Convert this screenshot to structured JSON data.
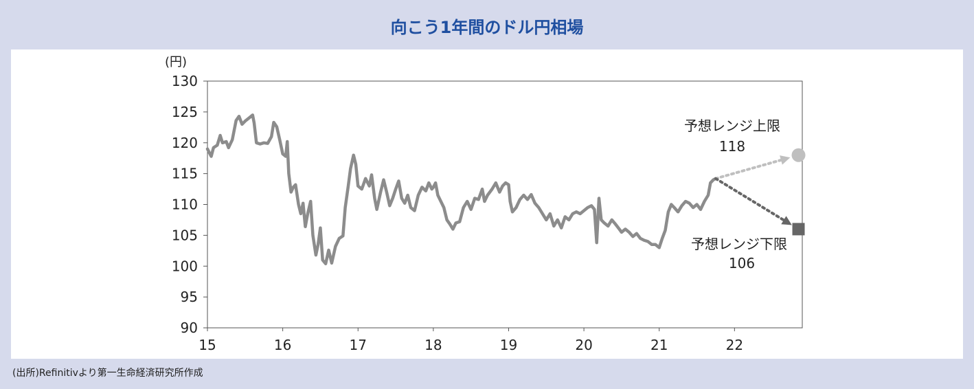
{
  "page": {
    "title": "向こう1年間のドル円相場",
    "source": "(出所)Refinitivより第一生命経済研究所作成"
  },
  "colors": {
    "background": "#d6daec",
    "title": "#1f4fa0",
    "line": "#8c8c8c",
    "upper": "#bfbfbf",
    "lower": "#666666"
  },
  "chart_data": {
    "type": "line",
    "y_unit_label": "(円)",
    "ylim": [
      90,
      130
    ],
    "y_ticks": [
      130,
      125,
      120,
      115,
      110,
      105,
      100,
      95,
      90
    ],
    "xlim": [
      15,
      22.9
    ],
    "x_ticks": [
      "15",
      "16",
      "17",
      "18",
      "19",
      "20",
      "21",
      "22"
    ],
    "grid": false,
    "series": [
      {
        "values": [
          [
            15.0,
            119.0
          ],
          [
            15.05,
            117.8
          ],
          [
            15.08,
            119.2
          ],
          [
            15.13,
            119.6
          ],
          [
            15.17,
            121.2
          ],
          [
            15.2,
            120.0
          ],
          [
            15.25,
            120.2
          ],
          [
            15.28,
            119.2
          ],
          [
            15.33,
            120.5
          ],
          [
            15.38,
            123.6
          ],
          [
            15.42,
            124.3
          ],
          [
            15.46,
            123.0
          ],
          [
            15.5,
            123.5
          ],
          [
            15.55,
            124.0
          ],
          [
            15.6,
            124.5
          ],
          [
            15.62,
            123.2
          ],
          [
            15.65,
            120.0
          ],
          [
            15.7,
            119.8
          ],
          [
            15.75,
            120.0
          ],
          [
            15.8,
            119.9
          ],
          [
            15.85,
            121.0
          ],
          [
            15.88,
            123.3
          ],
          [
            15.92,
            122.6
          ],
          [
            15.96,
            120.5
          ],
          [
            16.0,
            118.2
          ],
          [
            16.04,
            117.8
          ],
          [
            16.06,
            120.2
          ],
          [
            16.08,
            115.0
          ],
          [
            16.11,
            112.0
          ],
          [
            16.14,
            112.8
          ],
          [
            16.17,
            113.2
          ],
          [
            16.21,
            110.0
          ],
          [
            16.24,
            108.5
          ],
          [
            16.27,
            110.2
          ],
          [
            16.3,
            106.4
          ],
          [
            16.33,
            108.4
          ],
          [
            16.37,
            110.5
          ],
          [
            16.4,
            105.0
          ],
          [
            16.44,
            101.8
          ],
          [
            16.47,
            103.5
          ],
          [
            16.5,
            106.2
          ],
          [
            16.53,
            101.0
          ],
          [
            16.57,
            100.4
          ],
          [
            16.61,
            102.6
          ],
          [
            16.65,
            100.5
          ],
          [
            16.7,
            103.2
          ],
          [
            16.75,
            104.5
          ],
          [
            16.8,
            104.9
          ],
          [
            16.83,
            109.5
          ],
          [
            16.87,
            113.0
          ],
          [
            16.9,
            115.8
          ],
          [
            16.94,
            118.0
          ],
          [
            16.97,
            116.5
          ],
          [
            17.0,
            113.0
          ],
          [
            17.05,
            112.5
          ],
          [
            17.1,
            114.2
          ],
          [
            17.15,
            113.0
          ],
          [
            17.18,
            114.8
          ],
          [
            17.22,
            111.0
          ],
          [
            17.25,
            109.2
          ],
          [
            17.3,
            112.0
          ],
          [
            17.34,
            114.0
          ],
          [
            17.38,
            112.0
          ],
          [
            17.42,
            109.8
          ],
          [
            17.46,
            111.0
          ],
          [
            17.5,
            112.5
          ],
          [
            17.54,
            113.8
          ],
          [
            17.58,
            111.0
          ],
          [
            17.62,
            110.2
          ],
          [
            17.66,
            111.5
          ],
          [
            17.7,
            109.5
          ],
          [
            17.75,
            109.0
          ],
          [
            17.8,
            111.5
          ],
          [
            17.85,
            112.8
          ],
          [
            17.9,
            112.2
          ],
          [
            17.94,
            113.5
          ],
          [
            17.98,
            112.5
          ],
          [
            18.0,
            112.8
          ],
          [
            18.03,
            113.5
          ],
          [
            18.06,
            111.5
          ],
          [
            18.1,
            110.5
          ],
          [
            18.14,
            109.5
          ],
          [
            18.18,
            107.5
          ],
          [
            18.22,
            106.8
          ],
          [
            18.26,
            106.0
          ],
          [
            18.3,
            107.0
          ],
          [
            18.35,
            107.2
          ],
          [
            18.4,
            109.5
          ],
          [
            18.45,
            110.5
          ],
          [
            18.5,
            109.2
          ],
          [
            18.55,
            111.0
          ],
          [
            18.6,
            110.8
          ],
          [
            18.65,
            112.5
          ],
          [
            18.68,
            110.5
          ],
          [
            18.72,
            111.5
          ],
          [
            18.78,
            112.5
          ],
          [
            18.83,
            113.5
          ],
          [
            18.88,
            112.0
          ],
          [
            18.92,
            113.0
          ],
          [
            18.96,
            113.5
          ],
          [
            19.0,
            113.2
          ],
          [
            19.02,
            110.5
          ],
          [
            19.05,
            108.8
          ],
          [
            19.1,
            109.5
          ],
          [
            19.15,
            110.8
          ],
          [
            19.2,
            111.5
          ],
          [
            19.25,
            110.8
          ],
          [
            19.3,
            111.6
          ],
          [
            19.35,
            110.2
          ],
          [
            19.4,
            109.5
          ],
          [
            19.45,
            108.5
          ],
          [
            19.5,
            107.5
          ],
          [
            19.55,
            108.5
          ],
          [
            19.6,
            106.5
          ],
          [
            19.65,
            107.5
          ],
          [
            19.7,
            106.2
          ],
          [
            19.75,
            108.0
          ],
          [
            19.8,
            107.5
          ],
          [
            19.85,
            108.5
          ],
          [
            19.9,
            108.8
          ],
          [
            19.95,
            108.5
          ],
          [
            20.0,
            109.0
          ],
          [
            20.05,
            109.5
          ],
          [
            20.1,
            109.8
          ],
          [
            20.14,
            109.2
          ],
          [
            20.17,
            103.8
          ],
          [
            20.2,
            111.0
          ],
          [
            20.23,
            107.5
          ],
          [
            20.27,
            107.0
          ],
          [
            20.32,
            106.5
          ],
          [
            20.37,
            107.5
          ],
          [
            20.42,
            106.8
          ],
          [
            20.47,
            106.0
          ],
          [
            20.5,
            105.5
          ],
          [
            20.55,
            106.0
          ],
          [
            20.6,
            105.5
          ],
          [
            20.65,
            104.8
          ],
          [
            20.7,
            105.3
          ],
          [
            20.75,
            104.5
          ],
          [
            20.8,
            104.2
          ],
          [
            20.85,
            104.0
          ],
          [
            20.9,
            103.5
          ],
          [
            20.95,
            103.5
          ],
          [
            21.0,
            103.0
          ],
          [
            21.04,
            104.5
          ],
          [
            21.08,
            105.8
          ],
          [
            21.12,
            108.8
          ],
          [
            21.16,
            110.0
          ],
          [
            21.2,
            109.5
          ],
          [
            21.25,
            108.8
          ],
          [
            21.3,
            109.8
          ],
          [
            21.35,
            110.5
          ],
          [
            21.4,
            110.2
          ],
          [
            21.45,
            109.5
          ],
          [
            21.5,
            110.0
          ],
          [
            21.55,
            109.2
          ],
          [
            21.6,
            110.5
          ],
          [
            21.65,
            111.5
          ],
          [
            21.68,
            113.5
          ],
          [
            21.72,
            114.0
          ],
          [
            21.75,
            114.2
          ]
        ]
      }
    ],
    "forecast": {
      "start": [
        21.75,
        114.2
      ],
      "upper": {
        "label": "予想レンジ上限",
        "value_label": "118",
        "end": [
          22.85,
          118.0
        ]
      },
      "lower": {
        "label": "予想レンジ下限",
        "value_label": "106",
        "end": [
          22.85,
          106.0
        ]
      }
    }
  }
}
